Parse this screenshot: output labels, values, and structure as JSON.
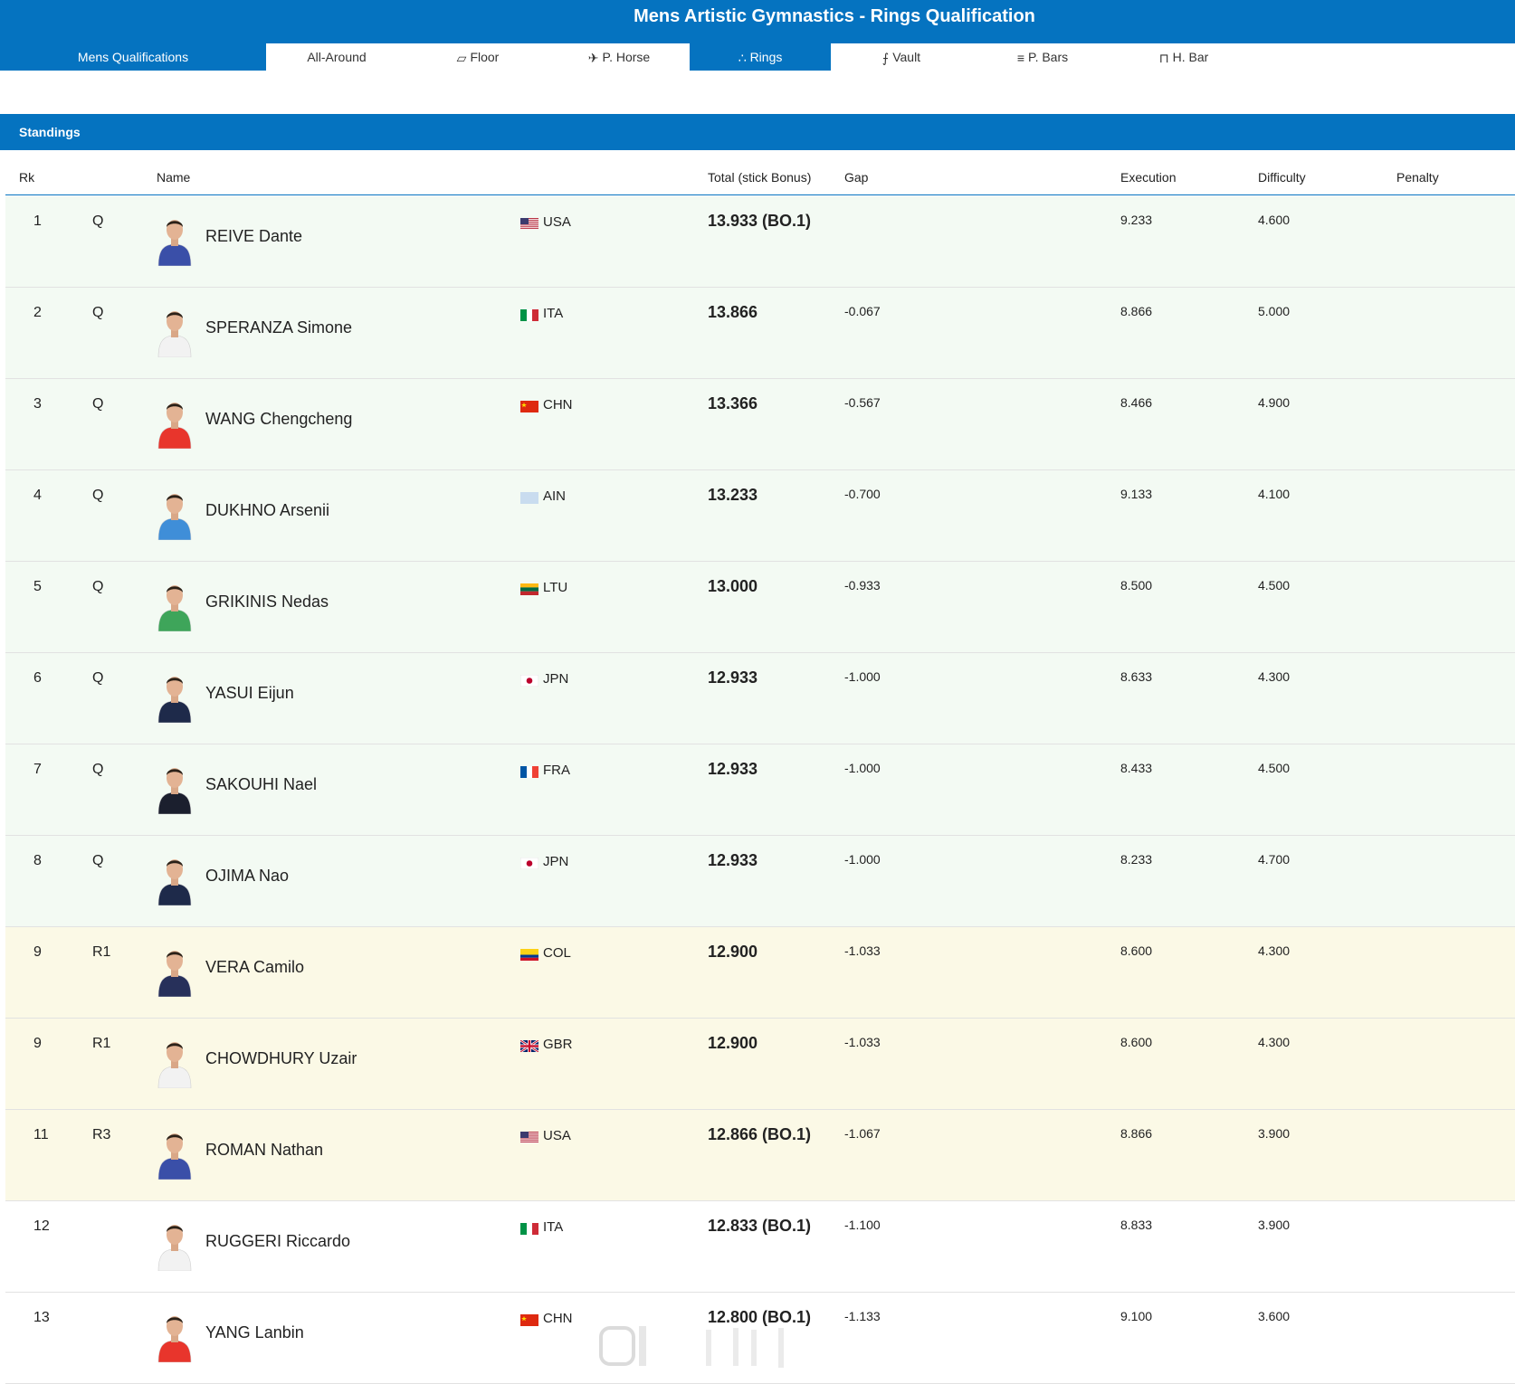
{
  "page_title": "Mens Artistic Gymnastics - Rings Qualification",
  "tabs": [
    {
      "label": "Mens Qualifications",
      "icon": "",
      "active": true
    },
    {
      "label": "All-Around",
      "icon": "",
      "active": false
    },
    {
      "label": "Floor",
      "icon": "floor-icon",
      "active": false
    },
    {
      "label": "P. Horse",
      "icon": "pommel-horse-icon",
      "active": false
    },
    {
      "label": "Rings",
      "icon": "rings-icon",
      "active": true
    },
    {
      "label": "Vault",
      "icon": "vault-icon",
      "active": false
    },
    {
      "label": "P. Bars",
      "icon": "parallel-bars-icon",
      "active": false
    },
    {
      "label": "H. Bar",
      "icon": "high-bar-icon",
      "active": false
    }
  ],
  "standings_label": "Standings",
  "columns": {
    "rk": "Rk",
    "name": "Name",
    "total": "Total (stick Bonus)",
    "gap": "Gap",
    "execution": "Execution",
    "difficulty": "Difficulty",
    "penalty": "Penalty"
  },
  "colors": {
    "brand_blue": "#0573c0",
    "qualified_row": "#f3faf3",
    "reserve_row": "#fbf9e6"
  },
  "rows": [
    {
      "rk": "1",
      "q": "Q",
      "name": "REIVE Dante",
      "country": "USA",
      "total": "13.933 (BO.1)",
      "gap": "",
      "execution": "9.233",
      "difficulty": "4.600",
      "penalty": "",
      "status": "q",
      "kit": "#3a4fa8"
    },
    {
      "rk": "2",
      "q": "Q",
      "name": "SPERANZA Simone",
      "country": "ITA",
      "total": "13.866",
      "gap": "-0.067",
      "execution": "8.866",
      "difficulty": "5.000",
      "penalty": "",
      "status": "q",
      "kit": "#f2f2f2"
    },
    {
      "rk": "3",
      "q": "Q",
      "name": "WANG Chengcheng",
      "country": "CHN",
      "total": "13.366",
      "gap": "-0.567",
      "execution": "8.466",
      "difficulty": "4.900",
      "penalty": "",
      "status": "q",
      "kit": "#e8352c"
    },
    {
      "rk": "4",
      "q": "Q",
      "name": "DUKHNO Arsenii",
      "country": "AIN",
      "total": "13.233",
      "gap": "-0.700",
      "execution": "9.133",
      "difficulty": "4.100",
      "penalty": "",
      "status": "q",
      "kit": "#3f8ed8"
    },
    {
      "rk": "5",
      "q": "Q",
      "name": "GRIKINIS Nedas",
      "country": "LTU",
      "total": "13.000",
      "gap": "-0.933",
      "execution": "8.500",
      "difficulty": "4.500",
      "penalty": "",
      "status": "q",
      "kit": "#3ea55a"
    },
    {
      "rk": "6",
      "q": "Q",
      "name": "YASUI Eijun",
      "country": "JPN",
      "total": "12.933",
      "gap": "-1.000",
      "execution": "8.633",
      "difficulty": "4.300",
      "penalty": "",
      "status": "q",
      "kit": "#1e2a4a"
    },
    {
      "rk": "7",
      "q": "Q",
      "name": "SAKOUHI Nael",
      "country": "FRA",
      "total": "12.933",
      "gap": "-1.000",
      "execution": "8.433",
      "difficulty": "4.500",
      "penalty": "",
      "status": "q",
      "kit": "#1b1f2e"
    },
    {
      "rk": "8",
      "q": "Q",
      "name": "OJIMA Nao",
      "country": "JPN",
      "total": "12.933",
      "gap": "-1.000",
      "execution": "8.233",
      "difficulty": "4.700",
      "penalty": "",
      "status": "q",
      "kit": "#1e2a4a"
    },
    {
      "rk": "9",
      "q": "R1",
      "name": "VERA Camilo",
      "country": "COL",
      "total": "12.900",
      "gap": "-1.033",
      "execution": "8.600",
      "difficulty": "4.300",
      "penalty": "",
      "status": "r",
      "kit": "#27305a"
    },
    {
      "rk": "9",
      "q": "R1",
      "name": "CHOWDHURY Uzair",
      "country": "GBR",
      "total": "12.900",
      "gap": "-1.033",
      "execution": "8.600",
      "difficulty": "4.300",
      "penalty": "",
      "status": "r",
      "kit": "#f2f2f2"
    },
    {
      "rk": "11",
      "q": "R3",
      "name": "ROMAN Nathan",
      "country": "USA",
      "total": "12.866 (BO.1)",
      "gap": "-1.067",
      "execution": "8.866",
      "difficulty": "3.900",
      "penalty": "",
      "status": "r",
      "kit": "#3a4fa8"
    },
    {
      "rk": "12",
      "q": "",
      "name": "RUGGERI Riccardo",
      "country": "ITA",
      "total": "12.833 (BO.1)",
      "gap": "-1.100",
      "execution": "8.833",
      "difficulty": "3.900",
      "penalty": "",
      "status": "n",
      "kit": "#f2f2f2"
    },
    {
      "rk": "13",
      "q": "",
      "name": "YANG Lanbin",
      "country": "CHN",
      "total": "12.800 (BO.1)",
      "gap": "-1.133",
      "execution": "9.100",
      "difficulty": "3.600",
      "penalty": "",
      "status": "n",
      "kit": "#e8352c"
    }
  ]
}
